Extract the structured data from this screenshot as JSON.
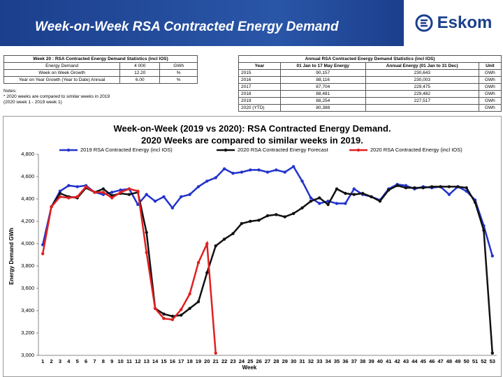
{
  "header": {
    "title": "Week-on-Week RSA Contracted Energy Demand",
    "logo_text": "Eskom"
  },
  "tables": {
    "left": {
      "title": "Week 20 : RSA Contracted Energy Demand Statistics (incl IOS)",
      "rows": [
        [
          "Energy Demand",
          "4 000",
          "GWh"
        ],
        [
          "Week on Week Growth",
          "12.20",
          "%"
        ],
        [
          "Year on Year Growth (Year to Date) Annual",
          "6.00",
          "%"
        ]
      ],
      "notes": [
        "Notes:",
        "* 2020 weeks are compared to similar weeks in 2019",
        "(2020 week 1 - 2019 week 1)"
      ]
    },
    "right": {
      "title": "Annual RSA Contracted Energy Demand Statistics (incl IOS)",
      "header": [
        "Year",
        "01 Jan to 17 May Energy",
        "Annual Energy (01 Jan to 31 Dec)",
        "Unit"
      ],
      "rows": [
        [
          "2015",
          "90,157",
          "230,643",
          "GWh"
        ],
        [
          "2016",
          "88,116",
          "230,003",
          "GWh"
        ],
        [
          "2017",
          "87,704",
          "229,475",
          "GWh"
        ],
        [
          "2018",
          "88,481",
          "229,482",
          "GWh"
        ],
        [
          "2019",
          "88,254",
          "227,517",
          "GWh"
        ],
        [
          "2020 (YTD)",
          "80,388",
          "",
          "GWh"
        ]
      ]
    }
  },
  "chart_data": {
    "type": "line",
    "title": "Week-on-Week (2019 vs 2020): RSA Contracted Energy Demand.",
    "subtitle": "2020 Weeks are compared to similar weeks in 2019.",
    "x_label": "Week",
    "y_label": "Energy Demand GWh",
    "categories": [
      "1",
      "2",
      "3",
      "4",
      "5",
      "6",
      "7",
      "8",
      "9",
      "10",
      "11",
      "12",
      "13",
      "14",
      "15",
      "16",
      "17",
      "18",
      "19",
      "20",
      "21",
      "22",
      "23",
      "24",
      "25",
      "26",
      "27",
      "28",
      "29",
      "30",
      "31",
      "32",
      "33",
      "34",
      "35",
      "36",
      "37",
      "38",
      "39",
      "40",
      "41",
      "42",
      "43",
      "44",
      "45",
      "46",
      "47",
      "48",
      "49",
      "50",
      "51",
      "52",
      "53"
    ],
    "ylim": [
      3000,
      4800
    ],
    "yticks": [
      {
        "value": 3000,
        "label": "3,000"
      },
      {
        "value": 3200,
        "label": "3,200"
      },
      {
        "value": 3400,
        "label": "3,400"
      },
      {
        "value": 3600,
        "label": "3,600"
      },
      {
        "value": 3800,
        "label": "3,800"
      },
      {
        "value": 4000,
        "label": "4,000"
      },
      {
        "value": 4200,
        "label": "4,200"
      },
      {
        "value": 4400,
        "label": "4,400"
      },
      {
        "value": 4600,
        "label": "4,600"
      },
      {
        "value": 4800,
        "label": "4,800"
      }
    ],
    "grid": false,
    "series": [
      {
        "name": "2019 RSA Contracted Energy (incl IOS)",
        "color": "#2233cc",
        "values": [
          3990,
          4330,
          4470,
          4520,
          4510,
          4520,
          4460,
          4440,
          4460,
          4480,
          4490,
          4350,
          4440,
          4380,
          4420,
          4320,
          4420,
          4440,
          4510,
          4560,
          4590,
          4670,
          4630,
          4640,
          4660,
          4660,
          4640,
          4660,
          4640,
          4690,
          4560,
          4410,
          4360,
          4380,
          4360,
          4360,
          4490,
          4440,
          4420,
          4390,
          4490,
          4530,
          4520,
          4490,
          4510,
          4500,
          4510,
          4440,
          4510,
          4470,
          4390,
          4160,
          3890
        ]
      },
      {
        "name": "2020 RSA Contracted Energy Forecast",
        "color": "#111111",
        "values": [
          null,
          4330,
          4450,
          4420,
          4410,
          4500,
          4460,
          4490,
          4430,
          4450,
          4440,
          4460,
          4100,
          3420,
          3370,
          3350,
          3360,
          3420,
          3480,
          3740,
          3980,
          4040,
          4090,
          4180,
          4200,
          4210,
          4250,
          4260,
          4240,
          4270,
          4320,
          4380,
          4410,
          4350,
          4490,
          4450,
          4440,
          4450,
          4420,
          4380,
          4480,
          4520,
          4500,
          4500,
          4500,
          4510,
          4510,
          4510,
          4510,
          4500,
          4370,
          4120,
          3020
        ]
      },
      {
        "name": "2020 RSA Contracted Energy (incl IOS)",
        "color": "#e02020",
        "values": [
          3910,
          4330,
          4420,
          4410,
          4420,
          4510,
          4460,
          4460,
          4410,
          4460,
          4490,
          4470,
          3920,
          3420,
          3330,
          3320,
          3410,
          3550,
          3830,
          4000,
          3020,
          null,
          null,
          null,
          null,
          null,
          null,
          null,
          null,
          null,
          null,
          null,
          null,
          null,
          null,
          null,
          null,
          null,
          null,
          null,
          null,
          null,
          null,
          null,
          null,
          null,
          null,
          null,
          null,
          null,
          null,
          null,
          null
        ]
      }
    ]
  }
}
